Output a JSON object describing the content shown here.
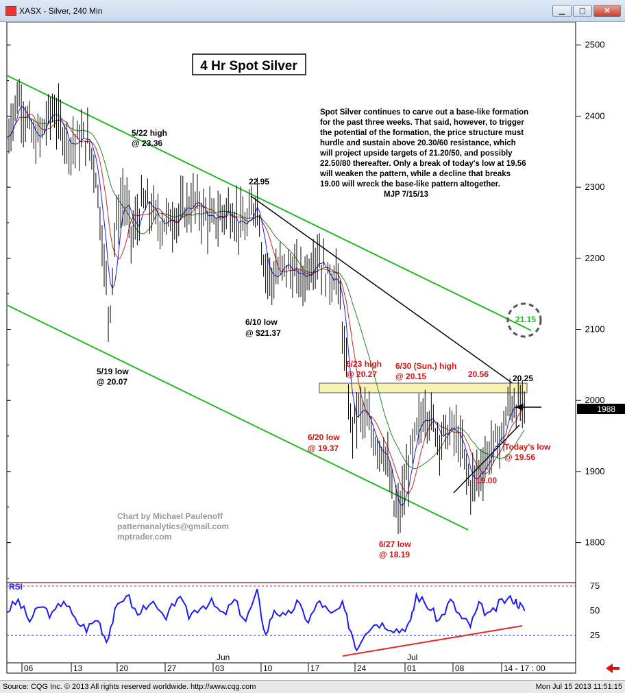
{
  "window": {
    "title": "XASX - Silver, 240 Min",
    "min_label": "▁",
    "max_label": "▢",
    "close_label": "✕"
  },
  "status": {
    "source": "Source: CQG Inc. © 2013 All rights reserved worldwide. http://www.cqg.com",
    "timestamp": "Mon Jul 15 2013 11:51:15"
  },
  "chart_data": {
    "type": "candlestick-bar",
    "title": "4 Hr Spot Silver",
    "ylim": [
      1740,
      2560
    ],
    "y_ticks": [
      1800,
      1900,
      2000,
      2100,
      2200,
      2300,
      2400,
      2500
    ],
    "last_price": "1988",
    "x_ticks": [
      "06",
      "13",
      "20",
      "27",
      "03",
      "10",
      "17",
      "24",
      "01",
      "08",
      "14 - 17 : 00"
    ],
    "month_labels": [
      "Jun",
      "Jul"
    ],
    "price_path": [
      [
        0,
        2370
      ],
      [
        0.02,
        2430
      ],
      [
        0.05,
        2360
      ],
      [
        0.08,
        2410
      ],
      [
        0.11,
        2360
      ],
      [
        0.14,
        2370
      ],
      [
        0.155,
        2330
      ],
      [
        0.165,
        2250
      ],
      [
        0.18,
        2110
      ],
      [
        0.19,
        2240
      ],
      [
        0.205,
        2290
      ],
      [
        0.22,
        2230
      ],
      [
        0.24,
        2280
      ],
      [
        0.27,
        2250
      ],
      [
        0.3,
        2260
      ],
      [
        0.33,
        2280
      ],
      [
        0.36,
        2250
      ],
      [
        0.39,
        2270
      ],
      [
        0.42,
        2240
      ],
      [
        0.44,
        2290
      ],
      [
        0.45,
        2200
      ],
      [
        0.465,
        2170
      ],
      [
        0.49,
        2190
      ],
      [
        0.52,
        2170
      ],
      [
        0.545,
        2210
      ],
      [
        0.565,
        2170
      ],
      [
        0.58,
        2180
      ],
      [
        0.59,
        2100
      ],
      [
        0.605,
        1960
      ],
      [
        0.62,
        1990
      ],
      [
        0.65,
        1940
      ],
      [
        0.665,
        1930
      ],
      [
        0.68,
        1850
      ],
      [
        0.69,
        1840
      ],
      [
        0.7,
        1880
      ],
      [
        0.715,
        1940
      ],
      [
        0.735,
        1990
      ],
      [
        0.76,
        1950
      ],
      [
        0.785,
        1960
      ],
      [
        0.8,
        1930
      ],
      [
        0.815,
        1880
      ],
      [
        0.83,
        1900
      ],
      [
        0.85,
        1930
      ],
      [
        0.87,
        1950
      ],
      [
        0.885,
        2000
      ],
      [
        0.9,
        1990
      ],
      [
        0.91,
        1988
      ]
    ],
    "rsi": {
      "label": "RSI",
      "levels": [
        75,
        50,
        25
      ],
      "path": [
        [
          0,
          50
        ],
        [
          0.02,
          60
        ],
        [
          0.04,
          40
        ],
        [
          0.06,
          55
        ],
        [
          0.08,
          45
        ],
        [
          0.1,
          62
        ],
        [
          0.12,
          40
        ],
        [
          0.14,
          32
        ],
        [
          0.16,
          42
        ],
        [
          0.175,
          20
        ],
        [
          0.19,
          48
        ],
        [
          0.21,
          68
        ],
        [
          0.23,
          45
        ],
        [
          0.25,
          60
        ],
        [
          0.28,
          40
        ],
        [
          0.3,
          65
        ],
        [
          0.32,
          45
        ],
        [
          0.34,
          55
        ],
        [
          0.36,
          58
        ],
        [
          0.38,
          45
        ],
        [
          0.4,
          60
        ],
        [
          0.42,
          40
        ],
        [
          0.44,
          68
        ],
        [
          0.455,
          25
        ],
        [
          0.47,
          52
        ],
        [
          0.49,
          42
        ],
        [
          0.51,
          58
        ],
        [
          0.53,
          40
        ],
        [
          0.55,
          60
        ],
        [
          0.57,
          45
        ],
        [
          0.59,
          55
        ],
        [
          0.605,
          30
        ],
        [
          0.615,
          12
        ],
        [
          0.63,
          30
        ],
        [
          0.65,
          38
        ],
        [
          0.67,
          35
        ],
        [
          0.69,
          30
        ],
        [
          0.71,
          38
        ],
        [
          0.72,
          66
        ],
        [
          0.74,
          55
        ],
        [
          0.76,
          40
        ],
        [
          0.78,
          60
        ],
        [
          0.8,
          42
        ],
        [
          0.815,
          35
        ],
        [
          0.83,
          55
        ],
        [
          0.85,
          45
        ],
        [
          0.87,
          60
        ],
        [
          0.89,
          62
        ],
        [
          0.9,
          57
        ],
        [
          0.91,
          50
        ]
      ]
    },
    "annotations": {
      "high_522": [
        "5/22 high",
        "@ 23.36"
      ],
      "low_519": [
        "5/19 low",
        "@ 20.07"
      ],
      "level_2295": "22.95",
      "low_610": [
        "6/10 low",
        "@ $21.37"
      ],
      "high_623": [
        "6/23 high",
        "@ 20.27"
      ],
      "high_630": [
        "6/30 (Sun.) high",
        "@ 20.15"
      ],
      "level_2056": "20.56",
      "level_2025": "20.25",
      "low_620": [
        "6/20 low",
        "@ 19.37"
      ],
      "low_627": [
        "6/27 low",
        "@ 18.19"
      ],
      "today_low": [
        "Today's low",
        "@ 19.56"
      ],
      "level_1900": "19.00",
      "target_2115": "21.15",
      "commentary": [
        "Spot Silver continues to carve out a base-like formation",
        "for the past three weeks.  That said, however, to trigger",
        "the potential of the formation, the price structure must",
        "hurdle and sustain above 20.30/60 resistance, which",
        "will project upside targets of 21.20/50, and possibly",
        "22.50/80 thereafter. Only a break of today's low at 19.56",
        "will weaken the pattern, while a decline that breaks",
        "19.00 will wreck the base-like pattern altogether."
      ],
      "signature": "MJP  7/15/13",
      "credit": [
        "Chart by Michael Paulenoff",
        "patternanalytics@gmail.com",
        "mptrader.com"
      ]
    },
    "colors": {
      "channel": "#22bb22",
      "trendline": "#000000",
      "ma_short": "#1a1aff",
      "ma_mid": "#dd2222",
      "ma_long": "#228822",
      "rsi_line": "#1a1aff",
      "rsi_trend": "#ee2222",
      "annotation_red": "#dd1111"
    }
  }
}
